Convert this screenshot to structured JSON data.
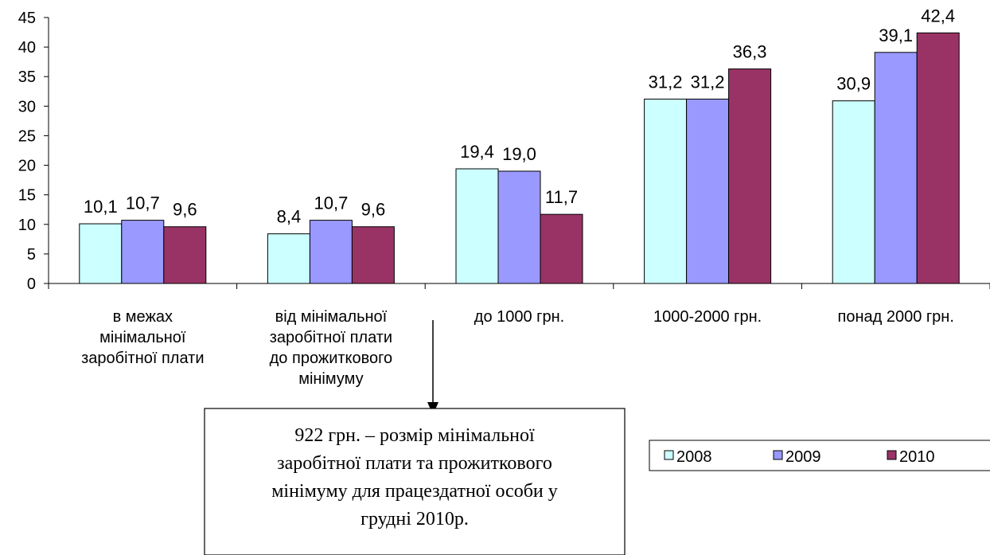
{
  "chart_data": {
    "type": "bar",
    "categories": [
      [
        "в межах",
        "мінімальної",
        "заробітної плати"
      ],
      [
        "від мінімальної",
        "заробітної плати",
        "до прожиткового",
        "мінімуму"
      ],
      [
        "до 1000 грн."
      ],
      [
        "1000-2000 грн."
      ],
      [
        "понад 2000 грн."
      ]
    ],
    "series": [
      {
        "name": "2008",
        "color": "#ccffff",
        "values": [
          10.1,
          8.4,
          19.4,
          31.2,
          30.9
        ],
        "labels": [
          "10,1",
          "8,4",
          "19,4",
          "31,2",
          "30,9"
        ]
      },
      {
        "name": "2009",
        "color": "#9999ff",
        "values": [
          10.7,
          10.7,
          19.0,
          31.2,
          39.1
        ],
        "labels": [
          "10,7",
          "10,7",
          "19,0",
          "31,2",
          "39,1"
        ]
      },
      {
        "name": "2010",
        "color": "#993366",
        "values": [
          9.6,
          9.6,
          11.7,
          36.3,
          42.4
        ],
        "labels": [
          "9,6",
          "9,6",
          "11,7",
          "36,3",
          "42,4"
        ]
      }
    ],
    "ylim": [
      0,
      45
    ],
    "yticks": [
      0,
      5,
      10,
      15,
      20,
      25,
      30,
      35,
      40,
      45
    ],
    "grid": false,
    "legend_position": "bottom-right",
    "annotation": {
      "lines": [
        "922 грн. – розмір мінімальної",
        "заробітної плати та прожиткового",
        "мінімуму для працездатної особи у",
        "грудні 2010р."
      ],
      "points_to": "від мінімальної заробітної плати до прожиткового мінімуму"
    }
  }
}
